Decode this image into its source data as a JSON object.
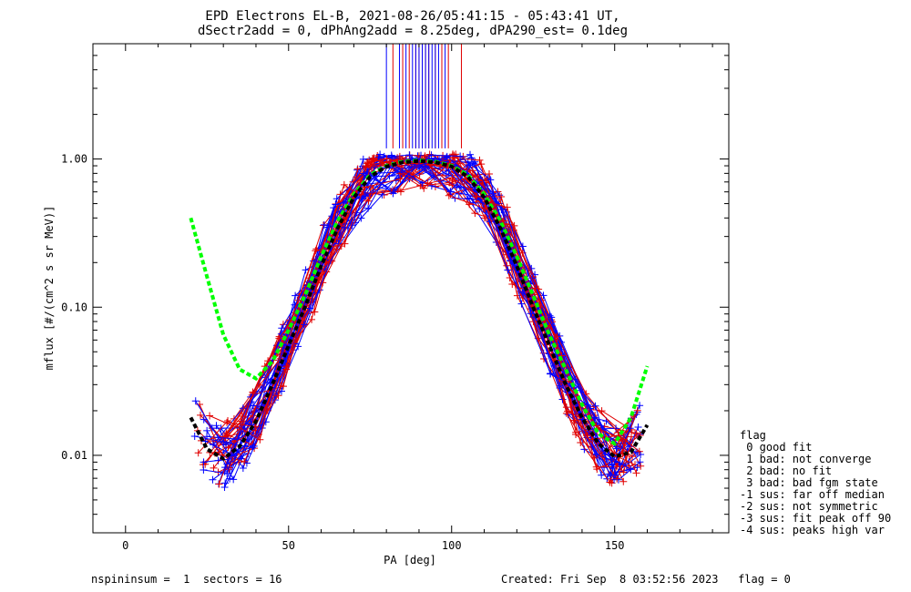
{
  "chart_data": {
    "type": "line",
    "title": "EPD Electrons EL-B, 2021-08-26/05:41:15 - 05:43:41 UT,",
    "subtitle": "dSectr2add = 0, dPhAng2add = 8.25deg, dPA290_est=   0.1deg",
    "xlabel": "PA [deg]",
    "ylabel": "mflux [#/(cm^2 s sr MeV)]",
    "xlim": [
      -10,
      185
    ],
    "ylim": [
      0.003,
      6.0
    ],
    "yscale": "log",
    "xticks": [
      0,
      50,
      100,
      150
    ],
    "yticks": [
      0.01,
      0.1,
      1.0
    ],
    "xtick_labels": [
      "0",
      "50",
      "100",
      "150"
    ],
    "ytick_labels": [
      "0.01",
      "0.10",
      "1.00"
    ],
    "grid": false,
    "colors": {
      "series_red": "#e00000",
      "series_blue": "#0000ff",
      "fit_green": "#00ff00",
      "fit_black": "#000000"
    },
    "peak_markers": {
      "red_x": [
        82,
        85,
        87,
        89,
        90,
        91,
        92,
        93,
        95,
        97,
        99,
        103
      ],
      "blue_x": [
        80,
        84,
        86,
        88,
        89,
        90,
        91,
        92,
        93,
        94,
        95,
        96,
        98
      ],
      "y_from": 1.18,
      "y_to": 6.0
    },
    "series": [
      {
        "name": "green-fit",
        "color": "#00ff00",
        "x": [
          20,
          25,
          30,
          35,
          40,
          45,
          50,
          55,
          60,
          65,
          70,
          75,
          80,
          85,
          90,
          95,
          100,
          105,
          110,
          115,
          120,
          125,
          130,
          135,
          140,
          145,
          150,
          155,
          160
        ],
        "values": [
          0.4,
          0.16,
          0.065,
          0.038,
          0.033,
          0.043,
          0.07,
          0.12,
          0.22,
          0.38,
          0.58,
          0.78,
          0.9,
          0.96,
          0.98,
          0.96,
          0.9,
          0.78,
          0.58,
          0.38,
          0.22,
          0.12,
          0.065,
          0.038,
          0.022,
          0.014,
          0.012,
          0.018,
          0.04
        ]
      },
      {
        "name": "black-fit",
        "color": "#000000",
        "x": [
          20,
          25,
          30,
          35,
          40,
          45,
          50,
          55,
          60,
          65,
          70,
          75,
          80,
          85,
          90,
          95,
          100,
          105,
          110,
          115,
          120,
          125,
          130,
          135,
          140,
          145,
          150,
          155,
          160
        ],
        "values": [
          0.018,
          0.011,
          0.0095,
          0.0115,
          0.017,
          0.03,
          0.055,
          0.1,
          0.19,
          0.34,
          0.55,
          0.76,
          0.89,
          0.95,
          0.97,
          0.95,
          0.89,
          0.76,
          0.55,
          0.34,
          0.19,
          0.1,
          0.055,
          0.03,
          0.018,
          0.012,
          0.0098,
          0.0105,
          0.016
        ]
      }
    ]
  },
  "legend": {
    "heading": "flag",
    "items": [
      " 0 good fit",
      " 1 bad: not converge",
      " 2 bad: no fit",
      " 3 bad: bad fgm state",
      "-1 sus: far off median",
      "-2 sus: not symmetric",
      "-3 sus: fit peak off 90",
      "-4 sus: peaks high var"
    ]
  },
  "footer": {
    "left": "nspininsum =  1  sectors = 16",
    "right": "Created: Fri Sep  8 03:52:56 2023   flag = 0"
  }
}
